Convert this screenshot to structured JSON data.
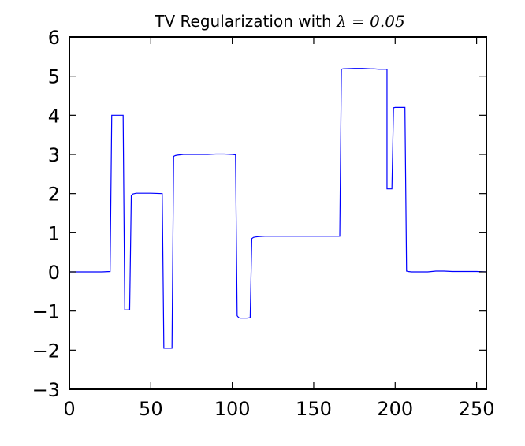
{
  "chart_data": {
    "type": "line",
    "title_prefix": "TV Regularization with ",
    "title_math": "λ = 0.05",
    "xlabel": "",
    "ylabel": "",
    "xlim": [
      0,
      256
    ],
    "ylim": [
      -3,
      6
    ],
    "xticks": [
      0,
      50,
      100,
      150,
      200,
      250
    ],
    "yticks": [
      -3,
      -2,
      -1,
      0,
      1,
      2,
      3,
      4,
      5,
      6
    ],
    "ytick_labels": [
      "−3",
      "−2",
      "−1",
      "0",
      "1",
      "2",
      "3",
      "4",
      "5",
      "6"
    ],
    "grid": false,
    "line_color": "#0000ff",
    "series": [
      {
        "x": [
          0,
          20,
          25,
          26,
          26,
          32,
          33,
          34,
          34,
          37,
          38,
          39,
          41,
          50,
          57,
          58,
          59,
          60,
          63,
          64,
          65,
          66,
          70,
          85,
          90,
          95,
          100,
          102,
          103,
          104,
          105,
          109,
          111,
          112,
          113,
          114,
          116,
          120,
          130,
          140,
          150,
          160,
          166,
          167,
          168,
          175,
          180,
          185,
          187,
          190,
          194,
          195,
          195,
          198,
          199,
          200,
          202,
          206,
          207,
          208,
          210,
          215,
          220,
          225,
          230,
          235,
          240,
          250,
          256
        ],
        "y": [
          0,
          0,
          0.01,
          4.0,
          4.0,
          4.0,
          4.0,
          -0.97,
          -0.97,
          -0.97,
          1.95,
          1.99,
          2.01,
          2.01,
          2.0,
          -1.95,
          -1.95,
          -1.95,
          -1.95,
          2.95,
          2.97,
          2.98,
          3.0,
          3.0,
          3.01,
          3.01,
          3.0,
          2.99,
          -1.12,
          -1.17,
          -1.18,
          -1.18,
          -1.17,
          0.85,
          0.88,
          0.89,
          0.9,
          0.91,
          0.91,
          0.91,
          0.91,
          0.91,
          0.91,
          5.18,
          5.19,
          5.2,
          5.2,
          5.19,
          5.19,
          5.18,
          5.18,
          5.18,
          2.12,
          2.12,
          4.19,
          4.2,
          4.2,
          4.2,
          0.02,
          0.01,
          0.0,
          0.0,
          0.0,
          0.02,
          0.02,
          0.01,
          0.01,
          0.01,
          0.0
        ]
      }
    ]
  }
}
